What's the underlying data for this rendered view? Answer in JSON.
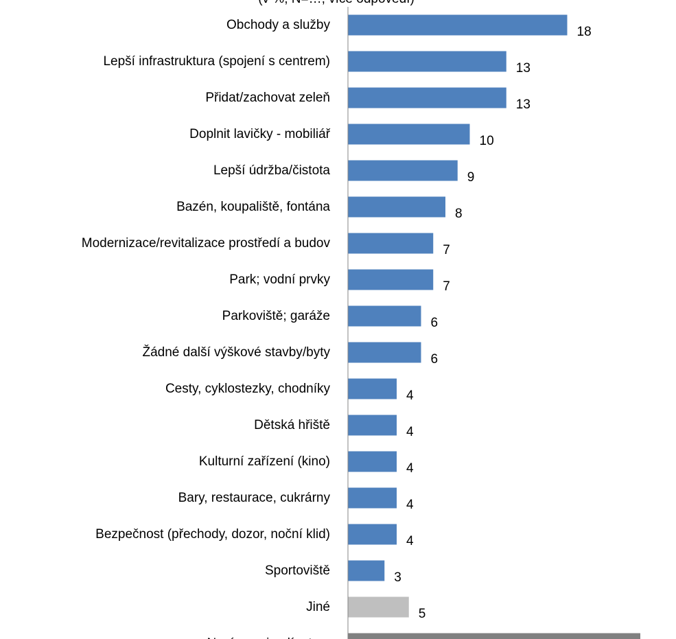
{
  "chart_data": {
    "type": "bar",
    "orientation": "horizontal",
    "title_fragment": "(v %; N=…, více odpovědí)",
    "categories": [
      "Obchody a služby",
      "Lepší infrastruktura (spojení s centrem)",
      "Přidat/zachovat zeleň",
      "Doplnit lavičky - mobiliář",
      "Lepší údržba/čistota",
      "Bazén, koupaliště, fontána",
      "Modernizace/revitalizace prostředí a budov",
      "Park; vodní prvky",
      "Parkoviště; garáže",
      "Žádné další výškové stavby/byty",
      "Cesty, cyklostezky, chodníky",
      "Dětská hřiště",
      "Kulturní zařízení (kino)",
      "Bary, restaurace, cukrárny",
      "Bezpečnost (přechody, dozor, noční klid)",
      "Sportoviště",
      "Jiné",
      "Nevím, nejezdím tam"
    ],
    "values": [
      18,
      13,
      13,
      10,
      9,
      8,
      7,
      7,
      6,
      6,
      4,
      4,
      4,
      4,
      4,
      3,
      5,
      24
    ],
    "bar_colors": [
      "#4f81bd",
      "#4f81bd",
      "#4f81bd",
      "#4f81bd",
      "#4f81bd",
      "#4f81bd",
      "#4f81bd",
      "#4f81bd",
      "#4f81bd",
      "#4f81bd",
      "#4f81bd",
      "#4f81bd",
      "#4f81bd",
      "#4f81bd",
      "#4f81bd",
      "#4f81bd",
      "#bfbfbf",
      "#808080"
    ],
    "xlim": [
      0,
      24
    ],
    "grid": false,
    "legend": "none"
  }
}
